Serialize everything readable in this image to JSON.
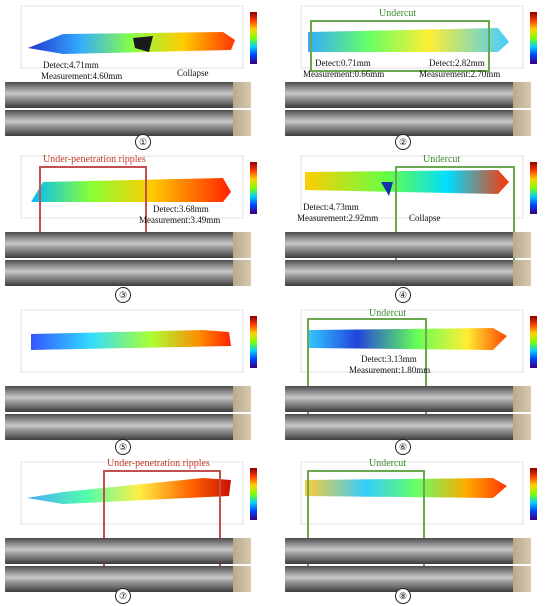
{
  "panels": [
    {
      "number": "①",
      "detect": "Detect:4.71mm",
      "measurement": "Measurement:4.60mm",
      "defect": "Collapse"
    },
    {
      "number": "②",
      "label": "Undercut",
      "detect_a": "Detect:0.71mm",
      "measure_a": "Measurement:0.66mm",
      "detect_b": "Detect:2.82mm",
      "measure_b": "Measurement:2.70mm"
    },
    {
      "number": "③",
      "label": "Under-penetration ripples",
      "detect": "Detect:3.68mm",
      "measurement": "Measurement:3.49mm"
    },
    {
      "number": "④",
      "label": "Undercut",
      "detect": "Detect:4.73mm",
      "measurement": "Measurement:2.92mm",
      "defect": "Collapse"
    },
    {
      "number": "⑤"
    },
    {
      "number": "⑥",
      "label": "Undercut",
      "detect": "Detect:3.13mm",
      "measurement": "Measurement:1.80mm"
    },
    {
      "number": "⑦",
      "label": "Under-penetration ripples"
    },
    {
      "number": "⑧",
      "label": "Undercut"
    }
  ]
}
